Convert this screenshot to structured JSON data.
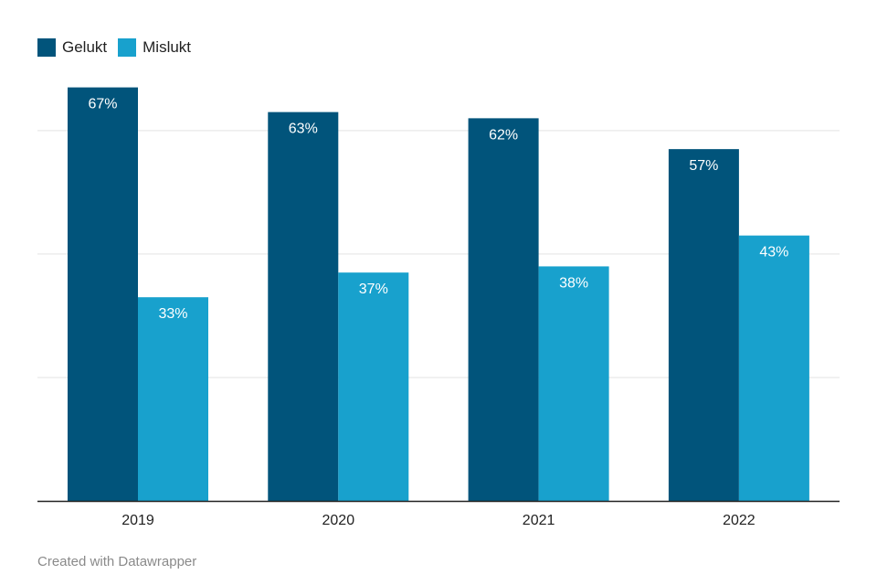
{
  "chart_data": {
    "type": "bar",
    "categories": [
      "2019",
      "2020",
      "2021",
      "2022"
    ],
    "series": [
      {
        "name": "Gelukt",
        "values": [
          67,
          63,
          62,
          57
        ],
        "color": "#01547b"
      },
      {
        "name": "Mislukt",
        "values": [
          33,
          37,
          38,
          43
        ],
        "color": "#18a1cd"
      }
    ],
    "data_labels": [
      [
        "67%",
        "63%",
        "62%",
        "57%"
      ],
      [
        "33%",
        "37%",
        "38%",
        "43%"
      ]
    ],
    "ylim": [
      0,
      75
    ],
    "grid": true,
    "gridline_values": [
      20,
      40,
      60
    ],
    "legend_position": "top-left",
    "title": "",
    "xlabel": "",
    "ylabel": ""
  },
  "footer": {
    "credit": "Created with Datawrapper"
  }
}
